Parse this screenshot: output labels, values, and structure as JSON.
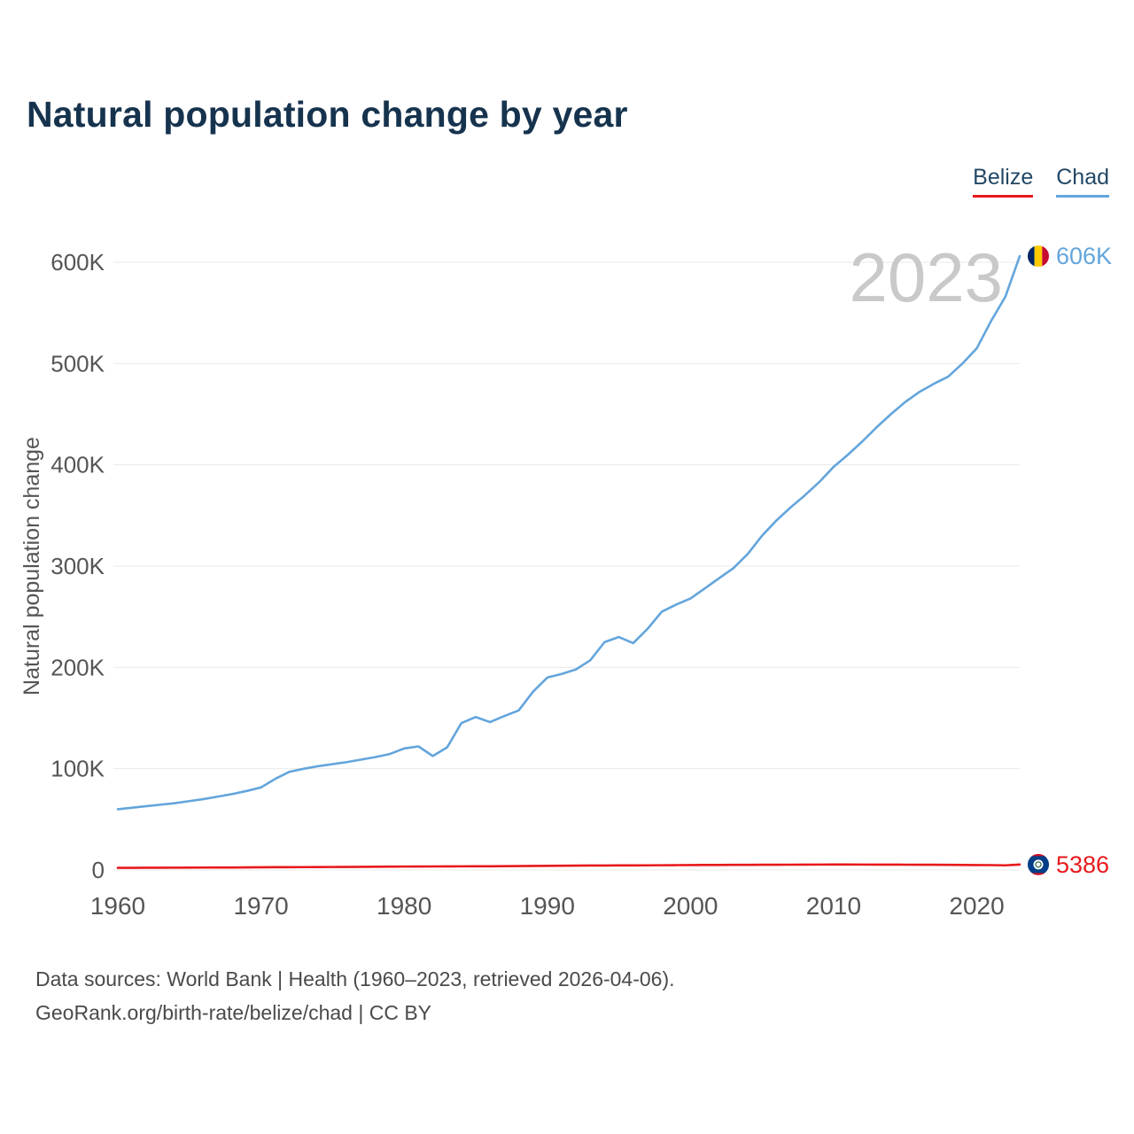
{
  "title": "Natural population change by year",
  "legend": {
    "items": [
      {
        "label": "Belize",
        "color": "#e8191c"
      },
      {
        "label": "Chad",
        "color": "#63a5dc"
      }
    ]
  },
  "watermark": "2023",
  "footer": {
    "line1": "Data sources: World Bank | Health (1960–2023, retrieved 2026-04-06).",
    "line2": "GeoRank.org/birth-rate/belize/chad | CC BY"
  },
  "chart_data": {
    "type": "line",
    "title": "Natural population change by year",
    "xlabel": "",
    "ylabel": "Natural population change",
    "grid": true,
    "legend_position": "top-right",
    "ylim": [
      0,
      620000
    ],
    "x": [
      1960,
      1961,
      1962,
      1963,
      1964,
      1965,
      1966,
      1967,
      1968,
      1969,
      1970,
      1971,
      1972,
      1973,
      1974,
      1975,
      1976,
      1977,
      1978,
      1979,
      1980,
      1981,
      1982,
      1983,
      1984,
      1985,
      1986,
      1987,
      1988,
      1989,
      1990,
      1991,
      1992,
      1993,
      1994,
      1995,
      1996,
      1997,
      1998,
      1999,
      2000,
      2001,
      2002,
      2003,
      2004,
      2005,
      2006,
      2007,
      2008,
      2009,
      2010,
      2011,
      2012,
      2013,
      2014,
      2015,
      2016,
      2017,
      2018,
      2019,
      2020,
      2021,
      2022,
      2023
    ],
    "xticks": [
      1960,
      1970,
      1980,
      1990,
      2000,
      2010,
      2020
    ],
    "yticks": [
      {
        "value": 0,
        "label": "0"
      },
      {
        "value": 100000,
        "label": "100K"
      },
      {
        "value": 200000,
        "label": "200K"
      },
      {
        "value": 300000,
        "label": "300K"
      },
      {
        "value": 400000,
        "label": "400K"
      },
      {
        "value": 500000,
        "label": "500K"
      },
      {
        "value": 600000,
        "label": "600K"
      }
    ],
    "series": [
      {
        "name": "Chad",
        "color": "#63a5dc",
        "flag": "chad",
        "end_label": "606K",
        "values": [
          60000,
          61500,
          63000,
          64500,
          66000,
          68000,
          70000,
          72500,
          75000,
          78000,
          81500,
          90000,
          97000,
          100000,
          102500,
          104500,
          106500,
          109000,
          111500,
          114500,
          120000,
          122000,
          112500,
          121000,
          145000,
          151000,
          146000,
          152000,
          157500,
          176000,
          190000,
          193500,
          198000,
          207000,
          225000,
          230000,
          224000,
          238000,
          255000,
          262000,
          268000,
          278000,
          288000,
          298000,
          312000,
          330000,
          345000,
          358000,
          370000,
          383000,
          398000,
          410000,
          423000,
          437000,
          450000,
          462000,
          472000,
          480000,
          487000,
          500000,
          515000,
          542000,
          566000,
          606000
        ]
      },
      {
        "name": "Belize",
        "color": "#e8191c",
        "flag": "belize",
        "end_label": "5386",
        "values": [
          2100,
          2150,
          2200,
          2250,
          2300,
          2350,
          2400,
          2450,
          2500,
          2600,
          2700,
          2750,
          2800,
          2850,
          2900,
          2950,
          3000,
          3100,
          3200,
          3300,
          3400,
          3450,
          3500,
          3550,
          3600,
          3650,
          3700,
          3800,
          3900,
          4000,
          4100,
          4200,
          4300,
          4400,
          4450,
          4500,
          4550,
          4600,
          4700,
          4800,
          4900,
          4950,
          5000,
          5050,
          5100,
          5150,
          5200,
          5250,
          5300,
          5350,
          5400,
          5380,
          5360,
          5340,
          5300,
          5250,
          5200,
          5150,
          5100,
          5000,
          4900,
          4800,
          4600,
          5386
        ]
      }
    ]
  }
}
